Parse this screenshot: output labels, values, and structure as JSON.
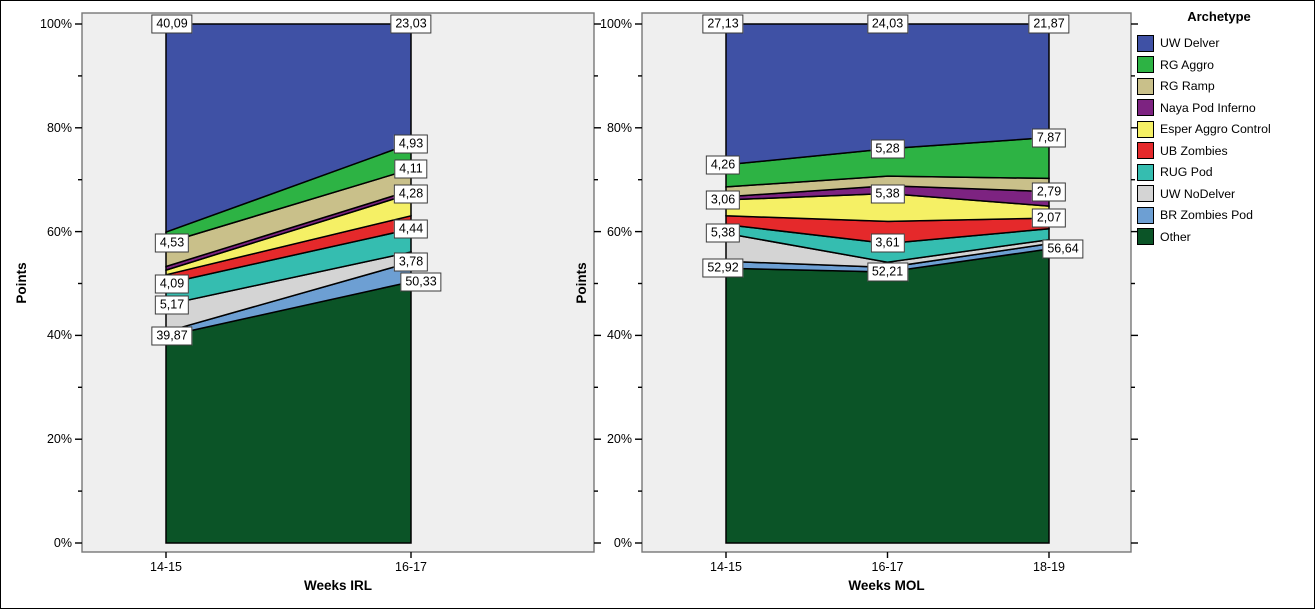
{
  "figure": {
    "bg": "#ffffff",
    "plot_bg": "#EFEFEF",
    "frame_color": "#777777",
    "tick_color": "#000000",
    "label_box_bg": "#ffffff",
    "label_box_border": "#3a3a3a"
  },
  "y_axis": {
    "label": "Points",
    "ticks": [
      "0%",
      "20%",
      "40%",
      "60%",
      "80%",
      "100%"
    ],
    "min": 0,
    "max": 100,
    "major_step": 20,
    "minor_step": 10
  },
  "legend": {
    "title": "Archetype",
    "position": "right",
    "items": [
      {
        "label": "UW Delver",
        "color": "#3F51A5"
      },
      {
        "label": "RG Aggro",
        "color": "#2DB344"
      },
      {
        "label": "RG Ramp",
        "color": "#C9C08A"
      },
      {
        "label": "Naya Pod Inferno",
        "color": "#7D2381"
      },
      {
        "label": "Esper Aggro Control",
        "color": "#F5F065"
      },
      {
        "label": "UB Zombies",
        "color": "#E5292B"
      },
      {
        "label": "RUG Pod",
        "color": "#35BDB0"
      },
      {
        "label": "UW NoDelver",
        "color": "#D4D4D4"
      },
      {
        "label": "BR Zombies Pod",
        "color": "#6D9FD3"
      },
      {
        "label": "Other",
        "color": "#0B5427"
      }
    ]
  },
  "chart_data": [
    {
      "type": "area",
      "stacked": true,
      "percent": true,
      "xlabel": "Weeks IRL",
      "ylabel": "Points",
      "ylim": [
        0,
        100
      ],
      "grid": false,
      "categories": [
        "14-15",
        "16-17"
      ],
      "series": [
        {
          "name": "UW Delver",
          "values": [
            40.09,
            23.03
          ]
        },
        {
          "name": "RG Aggro",
          "values": [
            2.1,
            4.93
          ]
        },
        {
          "name": "RG Ramp",
          "values": [
            4.53,
            4.11
          ]
        },
        {
          "name": "Naya Pod Inferno",
          "values": [
            0.7,
            0.6
          ]
        },
        {
          "name": "Esper Aggro Control",
          "values": [
            0.9,
            4.28
          ]
        },
        {
          "name": "UB Zombies",
          "values": [
            1.7,
            2.55
          ]
        },
        {
          "name": "RUG Pod",
          "values": [
            4.09,
            4.44
          ]
        },
        {
          "name": "UW NoDelver",
          "values": [
            5.17,
            1.95
          ]
        },
        {
          "name": "BR Zombies Pod",
          "values": [
            0.85,
            3.78
          ]
        },
        {
          "name": "Other",
          "values": [
            39.87,
            50.33
          ]
        }
      ],
      "value_labels": [
        {
          "series": "UW Delver",
          "cat": 0,
          "text": "40,09",
          "dx": 6
        },
        {
          "series": "RG Ramp",
          "cat": 0,
          "text": "4,53",
          "dx": 6
        },
        {
          "series": "RUG Pod",
          "cat": 0,
          "text": "4,09",
          "dx": 6
        },
        {
          "series": "UW NoDelver",
          "cat": 0,
          "text": "5,17",
          "dx": 6
        },
        {
          "series": "Other",
          "cat": 0,
          "text": "39,87",
          "dx": 6
        },
        {
          "series": "UW Delver",
          "cat": 1,
          "text": "23,03",
          "dx": 0
        },
        {
          "series": "RG Aggro",
          "cat": 1,
          "text": "4,93",
          "dx": 0
        },
        {
          "series": "RG Ramp",
          "cat": 1,
          "text": "4,11",
          "dx": 0
        },
        {
          "series": "Esper Aggro Control",
          "cat": 1,
          "text": "4,28",
          "dx": 0
        },
        {
          "series": "RUG Pod",
          "cat": 1,
          "text": "4,44",
          "dx": 0
        },
        {
          "series": "BR Zombies Pod",
          "cat": 1,
          "text": "3,78",
          "dx": 0
        },
        {
          "series": "Other",
          "cat": 1,
          "text": "50,33",
          "dx": 10
        }
      ]
    },
    {
      "type": "area",
      "stacked": true,
      "percent": true,
      "xlabel": "Weeks MOL",
      "ylabel": "Points",
      "ylim": [
        0,
        100
      ],
      "grid": false,
      "categories": [
        "14-15",
        "16-17",
        "18-19"
      ],
      "series": [
        {
          "name": "UW Delver",
          "values": [
            27.13,
            24.03,
            21.87
          ]
        },
        {
          "name": "RG Aggro",
          "values": [
            4.26,
            5.28,
            7.87
          ]
        },
        {
          "name": "RG Ramp",
          "values": [
            1.9,
            1.85,
            2.56
          ]
        },
        {
          "name": "Naya Pod Inferno",
          "values": [
            0.6,
            1.5,
            2.79
          ]
        },
        {
          "name": "Esper Aggro Control",
          "values": [
            3.06,
            5.38,
            2.3
          ]
        },
        {
          "name": "UB Zombies",
          "values": [
            1.7,
            4.25,
            2.07
          ]
        },
        {
          "name": "RUG Pod",
          "values": [
            1.7,
            3.61,
            2.1
          ]
        },
        {
          "name": "UW NoDelver",
          "values": [
            5.38,
            1.0,
            0.8
          ]
        },
        {
          "name": "BR Zombies Pod",
          "values": [
            1.35,
            0.89,
            1.0
          ]
        },
        {
          "name": "Other",
          "values": [
            52.92,
            52.21,
            56.64
          ]
        }
      ],
      "value_labels": [
        {
          "series": "UW Delver",
          "cat": 0,
          "text": "27,13",
          "dx": -3
        },
        {
          "series": "RG Aggro",
          "cat": 0,
          "text": "4,26",
          "dx": -3
        },
        {
          "series": "Esper Aggro Control",
          "cat": 0,
          "text": "3,06",
          "dx": -3
        },
        {
          "series": "UW NoDelver",
          "cat": 0,
          "text": "5,38",
          "dx": -3
        },
        {
          "series": "Other",
          "cat": 0,
          "text": "52,92",
          "dx": -3
        },
        {
          "series": "UW Delver",
          "cat": 1,
          "text": "24,03",
          "dx": 0
        },
        {
          "series": "RG Aggro",
          "cat": 1,
          "text": "5,28",
          "dx": 0
        },
        {
          "series": "Esper Aggro Control",
          "cat": 1,
          "text": "5,38",
          "dx": 0
        },
        {
          "series": "RUG Pod",
          "cat": 1,
          "text": "3,61",
          "dx": 0
        },
        {
          "series": "Other",
          "cat": 1,
          "text": "52,21",
          "dx": 0
        },
        {
          "series": "UW Delver",
          "cat": 2,
          "text": "21,87",
          "dx": 0
        },
        {
          "series": "RG Aggro",
          "cat": 2,
          "text": "7,87",
          "dx": 0
        },
        {
          "series": "Naya Pod Inferno",
          "cat": 2,
          "text": "2,79",
          "dx": 0
        },
        {
          "series": "UB Zombies",
          "cat": 2,
          "text": "2,07",
          "dx": 0
        },
        {
          "series": "Other",
          "cat": 2,
          "text": "56,64",
          "dx": 14
        }
      ]
    }
  ]
}
